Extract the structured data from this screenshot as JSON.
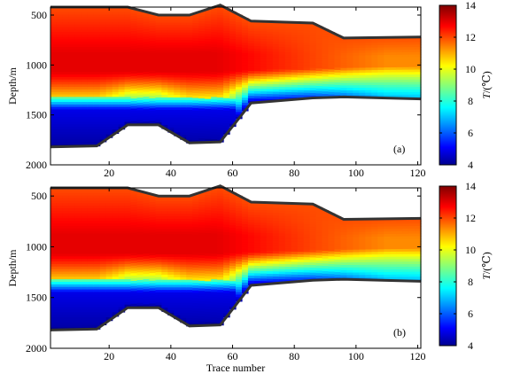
{
  "chart_data": [
    {
      "type": "heatmap",
      "panel_label": "(a)",
      "ylabel": "Depth/m",
      "xlabel": "",
      "xlim": [
        1,
        121
      ],
      "ylim": [
        2000,
        420
      ],
      "x_ticks": [
        "20",
        "40",
        "60",
        "80",
        "100",
        "120"
      ],
      "y_ticks": [
        "500",
        "1000",
        "1500",
        "2000"
      ],
      "colorbar": {
        "label_var": "T",
        "label_unit": "/(℃)",
        "range": [
          4,
          14
        ],
        "ticks": [
          "4",
          "6",
          "8",
          "10",
          "12",
          "14"
        ]
      },
      "top_boundary": {
        "x": [
          1,
          26,
          36,
          46,
          56,
          66,
          86,
          96,
          121
        ],
        "depth": [
          420,
          420,
          500,
          500,
          400,
          560,
          580,
          730,
          720
        ]
      },
      "bottom_boundary": {
        "x": [
          1,
          16,
          26,
          36,
          46,
          56,
          66,
          86,
          96,
          121
        ],
        "depth": [
          1820,
          1810,
          1600,
          1600,
          1780,
          1770,
          1380,
          1330,
          1320,
          1340
        ]
      }
    },
    {
      "type": "heatmap",
      "panel_label": "(b)",
      "ylabel": "Depth/m",
      "xlabel": "Trace number",
      "xlim": [
        1,
        121
      ],
      "ylim": [
        2000,
        420
      ],
      "x_ticks": [
        "20",
        "40",
        "60",
        "80",
        "100",
        "120"
      ],
      "y_ticks": [
        "500",
        "1000",
        "1500",
        "2000"
      ],
      "colorbar": {
        "label_var": "T",
        "label_unit": "/(℃)",
        "range": [
          4,
          14
        ],
        "ticks": [
          "4",
          "6",
          "8",
          "10",
          "12",
          "14"
        ]
      },
      "top_boundary": {
        "x": [
          1,
          26,
          36,
          46,
          56,
          66,
          86,
          96,
          121
        ],
        "depth": [
          420,
          420,
          500,
          500,
          400,
          560,
          580,
          730,
          720
        ]
      },
      "bottom_boundary": {
        "x": [
          1,
          16,
          26,
          36,
          46,
          56,
          66,
          86,
          96,
          121
        ],
        "depth": [
          1820,
          1810,
          1600,
          1600,
          1780,
          1770,
          1380,
          1330,
          1320,
          1340
        ]
      }
    }
  ],
  "colormap": [
    "#00008f",
    "#0000ff",
    "#0080ff",
    "#00ffff",
    "#80ff80",
    "#ffff00",
    "#ff8000",
    "#ff0000",
    "#800000"
  ]
}
